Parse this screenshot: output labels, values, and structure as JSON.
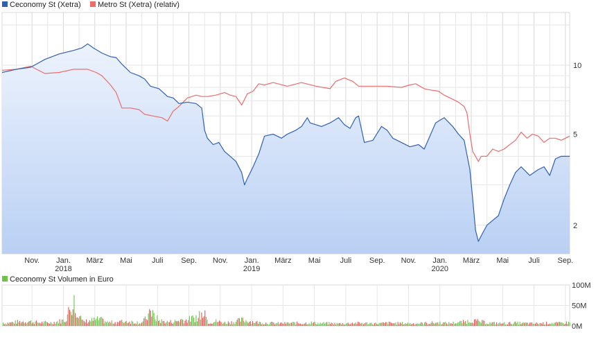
{
  "colors": {
    "primary_line": "#2f5fb4",
    "secondary_line": "#ef6b6b",
    "area_top": "#edf3fd",
    "area_bottom": "#b9d0f4",
    "grid": "#d8d8d8",
    "vol_up": "#6cc24a",
    "vol_down": "#e05a5a"
  },
  "chart_data": [
    {
      "type": "line",
      "title": "",
      "series": [
        {
          "name": "Ceconomy St (Xetra)",
          "color": "#2f5fb4",
          "fill": true,
          "points": [
            [
              0,
              9.3
            ],
            [
              5,
              9.6
            ],
            [
              10,
              9.8
            ],
            [
              15,
              10.6
            ],
            [
              20,
              11.2
            ],
            [
              25,
              11.6
            ],
            [
              28,
              11.9
            ],
            [
              30,
              12.4
            ],
            [
              32,
              11.9
            ],
            [
              35,
              11.3
            ],
            [
              38,
              10.9
            ],
            [
              40,
              10.8
            ],
            [
              42,
              10.1
            ],
            [
              45,
              9.3
            ],
            [
              48,
              9.0
            ],
            [
              50,
              8.7
            ],
            [
              52,
              8.1
            ],
            [
              55,
              7.9
            ],
            [
              57,
              7.5
            ],
            [
              58,
              7.3
            ],
            [
              60,
              7.2
            ],
            [
              62,
              6.8
            ],
            [
              65,
              6.9
            ],
            [
              68,
              6.8
            ],
            [
              70,
              6.5
            ],
            [
              71,
              5.2
            ],
            [
              72,
              4.8
            ],
            [
              74,
              4.5
            ],
            [
              76,
              4.6
            ],
            [
              78,
              4.2
            ],
            [
              80,
              4.0
            ],
            [
              82,
              3.8
            ],
            [
              84,
              3.4
            ],
            [
              85,
              3.0
            ],
            [
              86,
              3.2
            ],
            [
              88,
              3.6
            ],
            [
              90,
              4.1
            ],
            [
              92,
              4.9
            ],
            [
              95,
              5.0
            ],
            [
              98,
              4.8
            ],
            [
              100,
              5.0
            ],
            [
              103,
              5.2
            ],
            [
              105,
              5.4
            ],
            [
              107,
              5.9
            ],
            [
              108,
              5.6
            ],
            [
              110,
              5.5
            ],
            [
              112,
              5.4
            ],
            [
              115,
              5.6
            ],
            [
              117,
              5.8
            ],
            [
              118,
              5.9
            ],
            [
              120,
              5.5
            ],
            [
              122,
              5.3
            ],
            [
              124,
              5.9
            ],
            [
              125,
              6.0
            ],
            [
              127,
              4.6
            ],
            [
              130,
              4.7
            ],
            [
              133,
              5.4
            ],
            [
              135,
              5.2
            ],
            [
              137,
              4.8
            ],
            [
              140,
              4.6
            ],
            [
              143,
              4.4
            ],
            [
              146,
              4.5
            ],
            [
              148,
              4.3
            ],
            [
              150,
              4.9
            ],
            [
              152,
              5.6
            ],
            [
              155,
              5.9
            ],
            [
              158,
              5.4
            ],
            [
              160,
              5.0
            ],
            [
              162,
              4.7
            ],
            [
              164,
              3.5
            ],
            [
              165,
              2.6
            ],
            [
              166,
              1.9
            ],
            [
              167,
              1.7
            ],
            [
              168,
              1.8
            ],
            [
              170,
              2.0
            ],
            [
              172,
              2.1
            ],
            [
              174,
              2.2
            ],
            [
              176,
              2.6
            ],
            [
              178,
              3.0
            ],
            [
              180,
              3.4
            ],
            [
              182,
              3.6
            ],
            [
              185,
              3.3
            ],
            [
              188,
              3.5
            ],
            [
              190,
              3.6
            ],
            [
              192,
              3.3
            ],
            [
              194,
              3.9
            ],
            [
              196,
              4.0
            ],
            [
              199,
              4.0
            ]
          ]
        },
        {
          "name": "Metro St (Xetra) (relativ)",
          "color": "#ef6b6b",
          "fill": false,
          "points": [
            [
              0,
              9.5
            ],
            [
              5,
              9.6
            ],
            [
              10,
              9.9
            ],
            [
              15,
              9.2
            ],
            [
              20,
              9.3
            ],
            [
              25,
              9.6
            ],
            [
              30,
              9.6
            ],
            [
              33,
              9.3
            ],
            [
              35,
              9.0
            ],
            [
              38,
              8.2
            ],
            [
              40,
              7.6
            ],
            [
              42,
              6.5
            ],
            [
              45,
              6.5
            ],
            [
              48,
              6.4
            ],
            [
              50,
              6.1
            ],
            [
              53,
              6.0
            ],
            [
              56,
              5.9
            ],
            [
              58,
              5.7
            ],
            [
              60,
              6.3
            ],
            [
              62,
              6.6
            ],
            [
              65,
              7.2
            ],
            [
              68,
              7.4
            ],
            [
              70,
              7.3
            ],
            [
              72,
              7.3
            ],
            [
              75,
              7.4
            ],
            [
              78,
              7.6
            ],
            [
              80,
              7.4
            ],
            [
              82,
              7.3
            ],
            [
              84,
              6.7
            ],
            [
              86,
              7.5
            ],
            [
              88,
              7.7
            ],
            [
              90,
              8.3
            ],
            [
              92,
              8.2
            ],
            [
              95,
              8.4
            ],
            [
              100,
              8.1
            ],
            [
              105,
              8.4
            ],
            [
              110,
              8.1
            ],
            [
              115,
              7.9
            ],
            [
              117,
              8.5
            ],
            [
              120,
              8.8
            ],
            [
              123,
              8.5
            ],
            [
              125,
              8.1
            ],
            [
              130,
              8.1
            ],
            [
              135,
              8.1
            ],
            [
              140,
              8.0
            ],
            [
              143,
              8.2
            ],
            [
              145,
              8.3
            ],
            [
              148,
              7.9
            ],
            [
              150,
              7.8
            ],
            [
              153,
              7.7
            ],
            [
              155,
              7.4
            ],
            [
              158,
              7.1
            ],
            [
              160,
              6.9
            ],
            [
              162,
              6.6
            ],
            [
              163,
              6.2
            ],
            [
              164,
              5.0
            ],
            [
              165,
              4.2
            ],
            [
              166,
              4.0
            ],
            [
              167,
              3.8
            ],
            [
              168,
              4.0
            ],
            [
              170,
              4.0
            ],
            [
              172,
              4.3
            ],
            [
              174,
              4.2
            ],
            [
              176,
              4.3
            ],
            [
              178,
              4.5
            ],
            [
              180,
              4.7
            ],
            [
              182,
              5.1
            ],
            [
              184,
              4.8
            ],
            [
              186,
              5.0
            ],
            [
              188,
              4.9
            ],
            [
              190,
              4.6
            ],
            [
              192,
              4.8
            ],
            [
              194,
              4.8
            ],
            [
              196,
              4.7
            ],
            [
              199,
              4.9
            ]
          ]
        }
      ],
      "x_ticks": [
        {
          "label": "Nov.",
          "year": "",
          "t": 10.5
        },
        {
          "label": "Jan.",
          "year": "2018",
          "t": 21.5
        },
        {
          "label": "März",
          "year": "",
          "t": 32.5
        },
        {
          "label": "Mai",
          "year": "",
          "t": 43.5
        },
        {
          "label": "Juli",
          "year": "",
          "t": 54.5
        },
        {
          "label": "Sep.",
          "year": "",
          "t": 65.5
        },
        {
          "label": "Nov.",
          "year": "",
          "t": 76.5
        },
        {
          "label": "Jan.",
          "year": "2019",
          "t": 87.5
        },
        {
          "label": "März",
          "year": "",
          "t": 98.5
        },
        {
          "label": "Mai",
          "year": "",
          "t": 109.5
        },
        {
          "label": "Juli",
          "year": "",
          "t": 120.5
        },
        {
          "label": "Sep.",
          "year": "",
          "t": 131.5
        },
        {
          "label": "Nov.",
          "year": "",
          "t": 142.5
        },
        {
          "label": "Jan.",
          "year": "2020",
          "t": 153.5
        },
        {
          "label": "März",
          "year": "",
          "t": 164.5
        },
        {
          "label": "Mai",
          "year": "",
          "t": 175.5
        },
        {
          "label": "Juli",
          "year": "",
          "t": 186.5
        },
        {
          "label": "Sep.",
          "year": "",
          "t": 197.5
        }
      ],
      "y_ticks": [
        {
          "label": "10",
          "value": 10
        },
        {
          "label": "5",
          "value": 5
        },
        {
          "label": "2",
          "value": 2
        }
      ],
      "y_scale": "log",
      "ylim": [
        1.5,
        17
      ],
      "xlim": [
        0,
        199
      ],
      "grid": true,
      "legend": "top-left"
    },
    {
      "type": "bar",
      "series": [
        {
          "name": "Ceconomy St Volumen in Euro"
        }
      ],
      "y_ticks": [
        {
          "label": "100M",
          "value": 100
        },
        {
          "label": "50M",
          "value": 50
        },
        {
          "label": "0M",
          "value": 0
        }
      ],
      "ylim": [
        0,
        100
      ],
      "volume_samples": [
        [
          1,
          8
        ],
        [
          5,
          12
        ],
        [
          9,
          14
        ],
        [
          13,
          10
        ],
        [
          17,
          10
        ],
        [
          20,
          14
        ],
        [
          22,
          18
        ],
        [
          25,
          78
        ],
        [
          28,
          12
        ],
        [
          31,
          16
        ],
        [
          34,
          20
        ],
        [
          37,
          10
        ],
        [
          40,
          12
        ],
        [
          43,
          14
        ],
        [
          46,
          12
        ],
        [
          49,
          10
        ],
        [
          52,
          38
        ],
        [
          55,
          16
        ],
        [
          58,
          12
        ],
        [
          61,
          14
        ],
        [
          63,
          20
        ],
        [
          64,
          16
        ],
        [
          68,
          26
        ],
        [
          71,
          38
        ],
        [
          72,
          12
        ],
        [
          75,
          14
        ],
        [
          78,
          10
        ],
        [
          81,
          12
        ],
        [
          84,
          18
        ],
        [
          87,
          14
        ],
        [
          90,
          10
        ],
        [
          93,
          9
        ],
        [
          96,
          8
        ],
        [
          99,
          8
        ],
        [
          102,
          9
        ],
        [
          105,
          8
        ],
        [
          108,
          10
        ],
        [
          111,
          8
        ],
        [
          114,
          8
        ],
        [
          117,
          7
        ],
        [
          120,
          7
        ],
        [
          123,
          9
        ],
        [
          126,
          8
        ],
        [
          129,
          8
        ],
        [
          132,
          7
        ],
        [
          135,
          9
        ],
        [
          138,
          8
        ],
        [
          141,
          8
        ],
        [
          144,
          7
        ],
        [
          147,
          8
        ],
        [
          150,
          9
        ],
        [
          153,
          10
        ],
        [
          156,
          8
        ],
        [
          159,
          10
        ],
        [
          162,
          12
        ],
        [
          164,
          16
        ],
        [
          165,
          18
        ],
        [
          166,
          14
        ],
        [
          168,
          12
        ],
        [
          171,
          9
        ],
        [
          174,
          8
        ],
        [
          177,
          8
        ],
        [
          180,
          9
        ],
        [
          183,
          8
        ],
        [
          186,
          7
        ],
        [
          189,
          8
        ],
        [
          192,
          9
        ],
        [
          195,
          8
        ],
        [
          198,
          10
        ]
      ],
      "legend": "top-left"
    }
  ]
}
